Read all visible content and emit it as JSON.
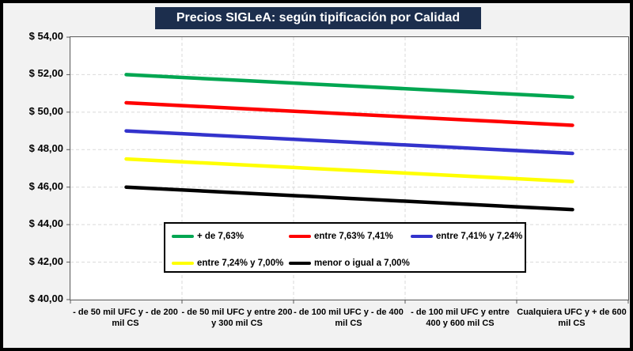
{
  "chart_data": {
    "type": "line",
    "title": "Precios SIGLeA: según tipificación por Calidad",
    "categories": [
      "- de 50 mil UFC y - de 200 mil CS",
      "- de 50 mil UFC y entre 200 y 300 mil CS",
      "- de 100 mil UFC y - de 400 mil CS",
      "- de 100 mil UFC y entre 400 y 600 mil CS",
      "Cualquiera UFC y + de 600 mil CS"
    ],
    "series": [
      {
        "name": "+ de 7,63%",
        "color": "#00A651",
        "values": [
          52.0,
          51.7,
          51.4,
          51.1,
          50.8
        ]
      },
      {
        "name": "entre 7,63% 7,41%",
        "color": "#FF0000",
        "values": [
          50.5,
          50.2,
          49.9,
          49.6,
          49.3
        ]
      },
      {
        "name": "entre 7,41% y 7,24%",
        "color": "#3333CC",
        "values": [
          49.0,
          48.7,
          48.4,
          48.1,
          47.8
        ]
      },
      {
        "name": "entre 7,24% y 7,00%",
        "color": "#FFFF00",
        "values": [
          47.5,
          47.2,
          46.9,
          46.6,
          46.3
        ]
      },
      {
        "name": "menor o igual a 7,00%",
        "color": "#000000",
        "values": [
          46.0,
          45.7,
          45.4,
          45.1,
          44.8
        ]
      }
    ],
    "y_tick_labels": [
      "$ 54,00",
      "$ 52,00",
      "$ 50,00",
      "$ 48,00",
      "$ 46,00",
      "$ 44,00",
      "$ 42,00",
      "$ 40,00"
    ],
    "ylim": [
      40,
      54
    ],
    "y_step": 2,
    "xlabel": "",
    "ylabel": "",
    "grid": true,
    "legend_position": "inside-bottom-left"
  },
  "colors": {
    "background": "#F2F2F2",
    "plot_background": "#FFFFFF",
    "title_background": "#1C2E4D",
    "title_text": "#FFFFFF",
    "gridline": "#D9D9D9",
    "axis_border": "#595959",
    "outer_border": "#000000"
  }
}
